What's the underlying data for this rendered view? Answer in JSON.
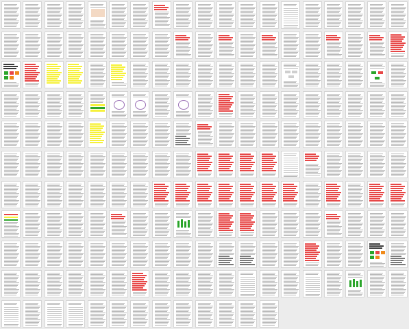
{
  "thumbnail_grid": {
    "columns": 19,
    "rows": 11,
    "page_count": 200,
    "pages": [
      "text",
      "text",
      "text",
      "text",
      "chart",
      "text",
      "text",
      "red-header",
      "text",
      "text",
      "text",
      "text",
      "text",
      "table",
      "text",
      "text",
      "text",
      "text",
      "text",
      "text",
      "text",
      "text",
      "text",
      "text",
      "text",
      "text",
      "text",
      "red-header",
      "text",
      "red-header",
      "text",
      "red-header",
      "text",
      "text",
      "red-header",
      "text",
      "red-header",
      "red-blocks",
      "dark-blocks",
      "red-blocks",
      "yellow",
      "yellow",
      "text",
      "yellow-light",
      "text",
      "text",
      "text",
      "text",
      "text",
      "text",
      "text",
      "diagram",
      "text",
      "text",
      "text",
      "green-diagram",
      "text",
      "text",
      "text",
      "text",
      "text",
      "yellow-small",
      "circle",
      "circle",
      "text",
      "circle",
      "text",
      "red-blocks",
      "text",
      "text",
      "text",
      "text",
      "text",
      "text",
      "text",
      "text",
      "text",
      "text",
      "text",
      "text",
      "yellow",
      "text",
      "text",
      "text",
      "gray-blocks",
      "red-header",
      "text",
      "text",
      "text",
      "text",
      "text",
      "text",
      "text",
      "text",
      "text",
      "text",
      "text",
      "text",
      "text",
      "text",
      "text",
      "text",
      "text",
      "text",
      "red-blocks",
      "red-blocks",
      "red-blocks",
      "red-blocks",
      "table",
      "red-small",
      "text",
      "text",
      "text",
      "text",
      "text",
      "text",
      "text",
      "text",
      "text",
      "text",
      "text",
      "red-blocks",
      "red-blocks",
      "red-blocks",
      "red-blocks",
      "red-blocks",
      "red-blocks",
      "red-blocks",
      "text",
      "red-blocks",
      "text",
      "red-blocks",
      "red-blocks",
      "color-bars",
      "text",
      "text",
      "text",
      "text",
      "red-header",
      "text",
      "text",
      "green-chart",
      "text",
      "red-blocks",
      "red-blocks",
      "text",
      "text",
      "text",
      "red-header",
      "text",
      "text",
      "text",
      "text",
      "text",
      "text",
      "text",
      "text",
      "text",
      "text",
      "text",
      "text",
      "text",
      "gray-blocks",
      "gray-blocks",
      "text",
      "text",
      "red-blocks",
      "text",
      "text",
      "dark-blocks",
      "gray-blocks",
      "text",
      "text",
      "text",
      "text",
      "text",
      "text",
      "red-blocks",
      "text",
      "text",
      "text",
      "text",
      "table",
      "text",
      "text",
      "table",
      "text",
      "green-chart",
      "text",
      "text",
      "table",
      "text",
      "table",
      "table",
      "text",
      "text",
      "text",
      "text",
      "text",
      "text",
      "text",
      "text",
      "text"
    ]
  },
  "colors": {
    "background": "#ececec",
    "page": "#ffffff",
    "text_line": "#b9b9b9",
    "red": "#e74646",
    "yellow": "#f6f13a",
    "green": "#2aa52a",
    "orange": "#f08a1a",
    "gray": "#7a7a7a",
    "dark": "#3b3b3b"
  }
}
